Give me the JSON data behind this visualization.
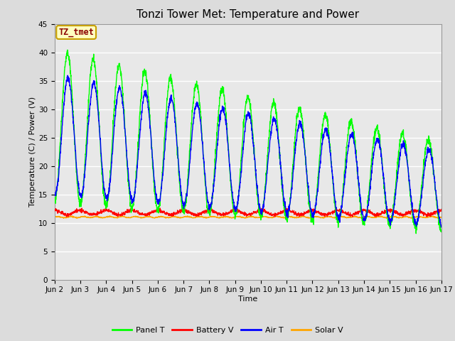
{
  "title": "Tonzi Tower Met: Temperature and Power",
  "xlabel": "Time",
  "ylabel": "Temperature (C) / Power (V)",
  "annotation": "TZ_tmet",
  "annotation_color": "#8B0000",
  "annotation_bg": "#FFFFC0",
  "annotation_border": "#C8A000",
  "ylim": [
    0,
    45
  ],
  "yticks": [
    0,
    5,
    10,
    15,
    20,
    25,
    30,
    35,
    40,
    45
  ],
  "xtick_labels": [
    "Jun 2",
    "Jun 3",
    "Jun 4",
    "Jun 5",
    "Jun 6",
    "Jun 7",
    "Jun 8",
    "Jun 9",
    "Jun 10",
    "Jun 11",
    "Jun 12",
    "Jun 13",
    "Jun 14",
    "Jun 15",
    "Jun 16",
    "Jun 17"
  ],
  "legend": [
    "Panel T",
    "Battery V",
    "Air T",
    "Solar V"
  ],
  "line_colors": [
    "#00FF00",
    "#FF0000",
    "#0000FF",
    "#FFA500"
  ],
  "background_color": "#DCDCDC",
  "plot_bg": "#E8E8E8",
  "grid_color": "#FFFFFF",
  "title_fontsize": 11,
  "axis_fontsize": 8,
  "tick_fontsize": 7.5,
  "legend_fontsize": 8
}
